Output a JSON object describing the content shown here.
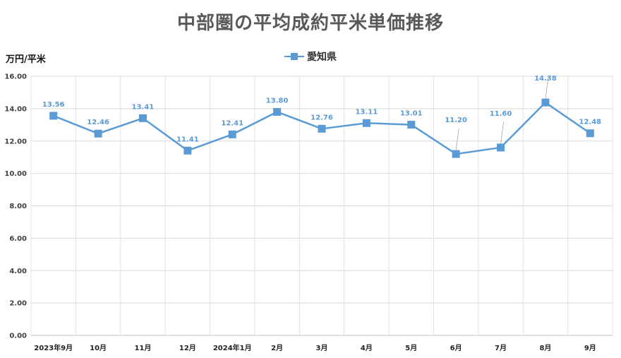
{
  "chart_data": {
    "type": "line",
    "title": "中部圏の平均成約平米単価推移",
    "ylabel": "万円/平米",
    "xlabel": "",
    "categories": [
      "2023年9月",
      "10月",
      "11月",
      "12月",
      "2024年1月",
      "2月",
      "3月",
      "4月",
      "5月",
      "6月",
      "7月",
      "8月",
      "9月"
    ],
    "series": [
      {
        "name": "愛知県",
        "color": "#5b9bd5",
        "values": [
          13.56,
          12.46,
          13.41,
          11.41,
          12.41,
          13.8,
          12.76,
          13.11,
          13.01,
          11.2,
          11.6,
          14.38,
          12.48
        ]
      }
    ],
    "ylim": [
      0,
      16
    ],
    "yticks": [
      "0.00",
      "2.00",
      "4.00",
      "6.00",
      "8.00",
      "10.00",
      "12.00",
      "14.00",
      "16.00"
    ],
    "data_labels": [
      "13.56",
      "12.46",
      "13.41",
      "11.41",
      "12.41",
      "13.80",
      "12.76",
      "13.11",
      "13.01",
      "11.20",
      "11.60",
      "14.38",
      "12.48"
    ],
    "grid": true,
    "legend_position": "top"
  }
}
